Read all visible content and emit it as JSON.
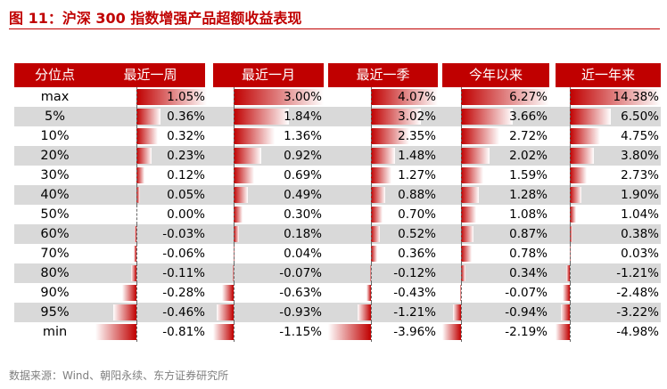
{
  "title": "图 11：沪深 300 指数增强产品超额收益表现",
  "source": "数据来源：Wind、朝阳永续、东方证券研究所",
  "colors": {
    "accent": "#c00000",
    "row_shade": "#d9d9d9"
  },
  "chart_data": {
    "type": "table",
    "headers": [
      "分位点",
      "最近一周",
      "最近一月",
      "最近一季",
      "今年以来",
      "近一年来"
    ],
    "rows": [
      {
        "label": "max",
        "values": [
          1.05,
          3.0,
          4.07,
          6.27,
          14.38
        ],
        "display": [
          "1.05%",
          "3.00%",
          "4.07%",
          "6.27%",
          "14.38%"
        ]
      },
      {
        "label": "5%",
        "values": [
          0.36,
          1.84,
          3.02,
          3.66,
          6.5
        ],
        "display": [
          "0.36%",
          "1.84%",
          "3.02%",
          "3.66%",
          "6.50%"
        ]
      },
      {
        "label": "10%",
        "values": [
          0.32,
          1.36,
          2.35,
          2.72,
          4.75
        ],
        "display": [
          "0.32%",
          "1.36%",
          "2.35%",
          "2.72%",
          "4.75%"
        ]
      },
      {
        "label": "20%",
        "values": [
          0.23,
          0.92,
          1.48,
          2.02,
          3.8
        ],
        "display": [
          "0.23%",
          "0.92%",
          "1.48%",
          "2.02%",
          "3.80%"
        ]
      },
      {
        "label": "30%",
        "values": [
          0.12,
          0.69,
          1.27,
          1.59,
          2.73
        ],
        "display": [
          "0.12%",
          "0.69%",
          "1.27%",
          "1.59%",
          "2.73%"
        ]
      },
      {
        "label": "40%",
        "values": [
          0.05,
          0.49,
          0.88,
          1.28,
          1.9
        ],
        "display": [
          "0.05%",
          "0.49%",
          "0.88%",
          "1.28%",
          "1.90%"
        ]
      },
      {
        "label": "50%",
        "values": [
          0.0,
          0.3,
          0.7,
          1.08,
          1.04
        ],
        "display": [
          "0.00%",
          "0.30%",
          "0.70%",
          "1.08%",
          "1.04%"
        ]
      },
      {
        "label": "60%",
        "values": [
          -0.03,
          0.18,
          0.52,
          0.87,
          0.38
        ],
        "display": [
          "-0.03%",
          "0.18%",
          "0.52%",
          "0.87%",
          "0.38%"
        ]
      },
      {
        "label": "70%",
        "values": [
          -0.06,
          0.04,
          0.36,
          0.78,
          0.03
        ],
        "display": [
          "-0.06%",
          "0.04%",
          "0.36%",
          "0.78%",
          "0.03%"
        ]
      },
      {
        "label": "80%",
        "values": [
          -0.11,
          -0.07,
          -0.12,
          0.34,
          -1.21
        ],
        "display": [
          "-0.11%",
          "-0.07%",
          "-0.12%",
          "0.34%",
          "-1.21%"
        ]
      },
      {
        "label": "90%",
        "values": [
          -0.28,
          -0.63,
          -0.43,
          -0.07,
          -2.48
        ],
        "display": [
          "-0.28%",
          "-0.63%",
          "-0.43%",
          "-0.07%",
          "-2.48%"
        ]
      },
      {
        "label": "95%",
        "values": [
          -0.46,
          -0.93,
          -1.21,
          -0.94,
          -3.22
        ],
        "display": [
          "-0.46%",
          "-0.93%",
          "-1.21%",
          "-0.94%",
          "-3.22%"
        ]
      },
      {
        "label": "min",
        "values": [
          -0.81,
          -1.15,
          -3.96,
          -2.19,
          -4.98
        ],
        "display": [
          "-0.81%",
          "-1.15%",
          "-3.96%",
          "-2.19%",
          "-4.98%"
        ]
      }
    ]
  }
}
